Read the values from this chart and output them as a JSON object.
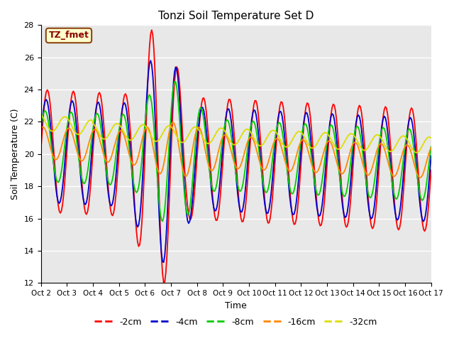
{
  "title": "Tonzi Soil Temperature Set D",
  "xlabel": "Time",
  "ylabel": "Soil Temperature (C)",
  "ylim": [
    12,
    28
  ],
  "series_colors": [
    "#ff0000",
    "#0000cc",
    "#00cc00",
    "#ff8800",
    "#dddd00"
  ],
  "series_labels": [
    "-2cm",
    "-4cm",
    "-8cm",
    "-16cm",
    "-32cm"
  ],
  "xtick_labels": [
    "Oct 2",
    "Oct 3",
    "Oct 4",
    "Oct 5",
    "Oct 6",
    "Oct 7",
    "Oct 8",
    "Oct 9",
    "Oct 10",
    "Oct 11",
    "Oct 12",
    "Oct 13",
    "Oct 14",
    "Oct 15",
    "Oct 16",
    "Oct 17"
  ],
  "annotation_text": "TZ_fmet",
  "bg_color": "#e8e8e8",
  "fig_bg_color": "#ffffff"
}
